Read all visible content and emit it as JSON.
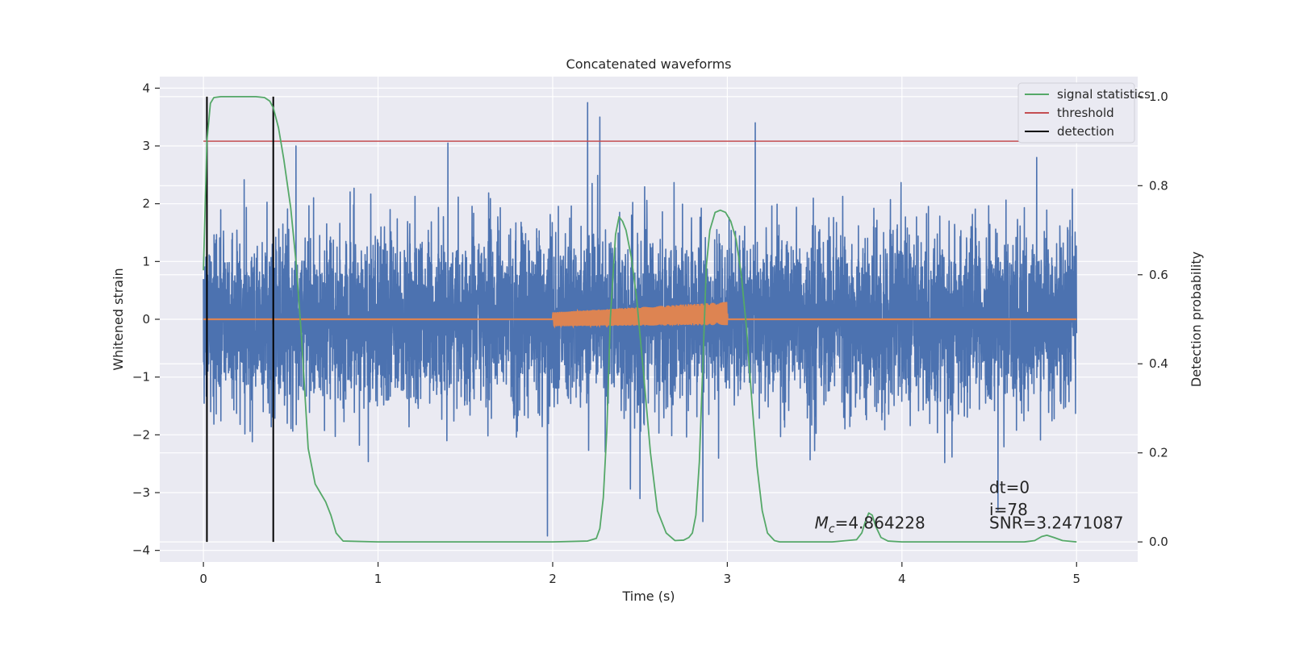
{
  "chart_data": {
    "type": "line",
    "title": "Concatenated waveforms",
    "xlabel": "Time (s)",
    "ylabel_left": "Whitened strain",
    "ylabel_right": "Detection probability",
    "xlim": [
      -0.25,
      5.35
    ],
    "ylim_left": [
      -4.2,
      4.2
    ],
    "ylim_right": [
      -0.045,
      1.045
    ],
    "xticks": [
      0,
      1,
      2,
      3,
      4,
      5
    ],
    "yticks_left": [
      -4,
      -3,
      -2,
      -1,
      0,
      1,
      2,
      3,
      4
    ],
    "yticks_right": [
      0.0,
      0.2,
      0.4,
      0.6,
      0.8,
      1.0
    ],
    "grid": true,
    "legend_position": "top-right",
    "colors": {
      "strain": "#4c72b0",
      "template": "#dd8452",
      "signal_statistics": "#55a868",
      "threshold": "#c44e52",
      "detection": "#000000",
      "background": "#eaeaf2",
      "grid": "#ffffff"
    },
    "legend": [
      {
        "label": "signal statistics",
        "color": "#55a868"
      },
      {
        "label": "threshold",
        "color": "#c44e52"
      },
      {
        "label": "detection",
        "color": "#000000"
      }
    ],
    "strain": {
      "x_range": [
        0,
        5
      ],
      "typical_amplitude": 0.75,
      "peaks": [
        {
          "x": 2.2,
          "y": 3.75
        },
        {
          "x": 2.27,
          "y": 3.5
        },
        {
          "x": 3.16,
          "y": 3.4
        },
        {
          "x": 1.4,
          "y": 3.05
        },
        {
          "x": 0.53,
          "y": 3.0
        },
        {
          "x": 1.97,
          "y": -3.75
        },
        {
          "x": 4.55,
          "y": -3.3
        },
        {
          "x": 2.86,
          "y": -3.5
        }
      ]
    },
    "template": {
      "x_range": [
        0,
        5
      ],
      "chirp_start": 2.0,
      "chirp_end": 3.0,
      "amplitude_start": 0.12,
      "amplitude_end": 0.2,
      "offset_end": 0.1
    },
    "signal_statistics": {
      "x": [
        0.0,
        0.02,
        0.04,
        0.06,
        0.1,
        0.2,
        0.3,
        0.35,
        0.38,
        0.4,
        0.43,
        0.46,
        0.5,
        0.53,
        0.56,
        0.6,
        0.64,
        0.67,
        0.7,
        0.73,
        0.76,
        0.8,
        1.0,
        1.5,
        2.0,
        2.2,
        2.25,
        2.27,
        2.29,
        2.31,
        2.33,
        2.36,
        2.38,
        2.4,
        2.42,
        2.45,
        2.48,
        2.52,
        2.56,
        2.6,
        2.65,
        2.7,
        2.75,
        2.78,
        2.8,
        2.82,
        2.84,
        2.86,
        2.88,
        2.9,
        2.93,
        2.96,
        2.99,
        3.02,
        3.05,
        3.08,
        3.11,
        3.14,
        3.17,
        3.2,
        3.23,
        3.27,
        3.3,
        3.4,
        3.6,
        3.74,
        3.77,
        3.79,
        3.81,
        3.83,
        3.85,
        3.88,
        3.92,
        4.0,
        4.5,
        4.7,
        4.76,
        4.8,
        4.83,
        4.87,
        4.92,
        5.0
      ],
      "values": [
        0.61,
        0.9,
        0.985,
        0.998,
        1.0,
        1.0,
        1.0,
        0.998,
        0.99,
        0.975,
        0.93,
        0.86,
        0.75,
        0.63,
        0.47,
        0.21,
        0.13,
        0.11,
        0.09,
        0.06,
        0.02,
        0.002,
        0.0,
        0.0,
        0.0,
        0.002,
        0.008,
        0.03,
        0.1,
        0.25,
        0.5,
        0.69,
        0.73,
        0.72,
        0.7,
        0.64,
        0.55,
        0.38,
        0.2,
        0.07,
        0.02,
        0.003,
        0.004,
        0.01,
        0.02,
        0.06,
        0.18,
        0.4,
        0.62,
        0.7,
        0.74,
        0.745,
        0.74,
        0.72,
        0.68,
        0.6,
        0.48,
        0.32,
        0.17,
        0.07,
        0.02,
        0.003,
        0.0,
        0.0,
        0.0,
        0.005,
        0.02,
        0.045,
        0.065,
        0.06,
        0.035,
        0.01,
        0.002,
        0.0,
        0.0,
        0.0,
        0.003,
        0.012,
        0.015,
        0.01,
        0.003,
        0.0
      ]
    },
    "threshold": {
      "x_range": [
        0,
        5.1
      ],
      "value": 0.9
    },
    "detections": [
      0.02,
      0.4
    ],
    "detection_y_range": [
      0.0,
      1.0
    ],
    "annotations": [
      {
        "name": "mc",
        "text": "=4.864228",
        "symbol": "M",
        "subscript": "c",
        "x": 3.5,
        "y": 0.03
      },
      {
        "name": "dt",
        "text": "dt=0",
        "x": 4.5,
        "y": 0.11
      },
      {
        "name": "i",
        "text": "i=78",
        "x": 4.5,
        "y": 0.06
      },
      {
        "name": "snr",
        "text": "SNR=3.2471087",
        "x": 4.5,
        "y": 0.03
      }
    ]
  }
}
